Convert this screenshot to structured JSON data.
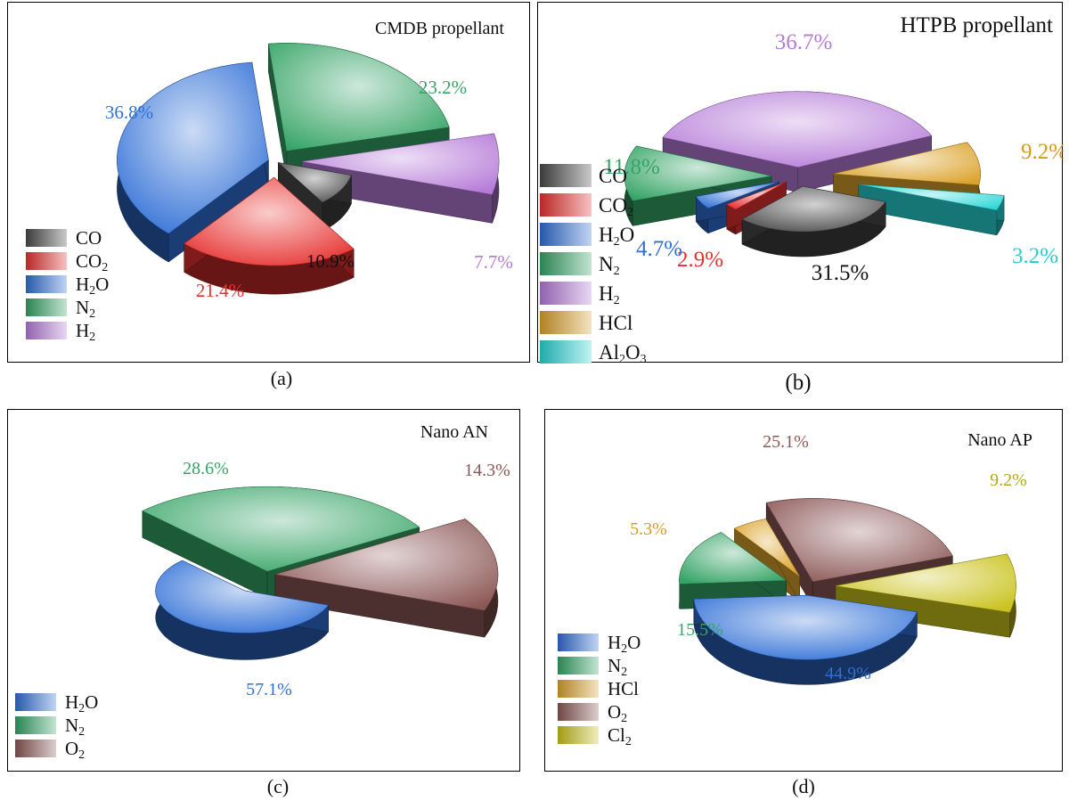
{
  "colors": {
    "CO": "#4a4a4a",
    "CO2": "#e6312f",
    "H2O": "#2f6fd6",
    "N2": "#35a466",
    "H2": "#b57ad8",
    "HCl": "#dca22a",
    "Al2O3": "#28d6d6",
    "O2": "#8b5755",
    "Cl2": "#c9c21c"
  },
  "chart_data": [
    {
      "type": "pie",
      "caption": "(a)",
      "title": "CMDB propellant",
      "slices": [
        {
          "key": "CO",
          "label_main": "CO",
          "label_sub": "",
          "label_tail": "",
          "value": 10.9,
          "label": "10.9%"
        },
        {
          "key": "CO2",
          "label_main": "CO",
          "label_sub": "2",
          "label_tail": "",
          "value": 21.4,
          "label": "21.4%"
        },
        {
          "key": "H2O",
          "label_main": "H",
          "label_sub": "2",
          "label_tail": "O",
          "value": 36.8,
          "label": "36.8%"
        },
        {
          "key": "N2",
          "label_main": "N",
          "label_sub": "2",
          "label_tail": "",
          "value": 23.2,
          "label": "23.2%"
        },
        {
          "key": "H2",
          "label_main": "H",
          "label_sub": "2",
          "label_tail": "",
          "value": 7.7,
          "label": "7.7%"
        }
      ],
      "legend_position": "bottom-left"
    },
    {
      "type": "pie",
      "caption": "(b)",
      "title": "HTPB propellant",
      "slices": [
        {
          "key": "CO",
          "label_main": "CO",
          "label_sub": "",
          "label_tail": "",
          "value": 31.5,
          "label": "31.5%"
        },
        {
          "key": "CO2",
          "label_main": "CO",
          "label_sub": "2",
          "label_tail": "",
          "value": 2.9,
          "label": "2.9%"
        },
        {
          "key": "H2O",
          "label_main": "H",
          "label_sub": "2",
          "label_tail": "O",
          "value": 4.7,
          "label": "4.7%"
        },
        {
          "key": "N2",
          "label_main": "N",
          "label_sub": "2",
          "label_tail": "",
          "value": 11.8,
          "label": "11.8%"
        },
        {
          "key": "H2",
          "label_main": "H",
          "label_sub": "2",
          "label_tail": "",
          "value": 36.7,
          "label": "36.7%"
        },
        {
          "key": "HCl",
          "label_main": "HCl",
          "label_sub": "",
          "label_tail": "",
          "value": 9.2,
          "label": "9.2%"
        },
        {
          "key": "Al2O3",
          "label_main": "Al",
          "label_sub": "2",
          "label_tail": "O<sub>3</sub>",
          "value": 3.2,
          "label": "3.2%"
        }
      ],
      "legend_position": "left"
    },
    {
      "type": "pie",
      "caption": "(c)",
      "title": "Nano AN",
      "slices": [
        {
          "key": "H2O",
          "label_main": "H",
          "label_sub": "2",
          "label_tail": "O",
          "value": 57.1,
          "label": "57.1%"
        },
        {
          "key": "N2",
          "label_main": "N",
          "label_sub": "2",
          "label_tail": "",
          "value": 28.6,
          "label": "28.6%"
        },
        {
          "key": "O2",
          "label_main": "O",
          "label_sub": "2",
          "label_tail": "",
          "value": 14.3,
          "label": "14.3%"
        }
      ],
      "legend_position": "bottom-left"
    },
    {
      "type": "pie",
      "caption": "(d)",
      "title": "Nano AP",
      "slices": [
        {
          "key": "H2O",
          "label_main": "H",
          "label_sub": "2",
          "label_tail": "O",
          "value": 44.9,
          "label": "44.9%"
        },
        {
          "key": "N2",
          "label_main": "N",
          "label_sub": "2",
          "label_tail": "",
          "value": 15.5,
          "label": "15.5%"
        },
        {
          "key": "HCl",
          "label_main": "HCl",
          "label_sub": "",
          "label_tail": "",
          "value": 5.3,
          "label": "5.3%"
        },
        {
          "key": "O2",
          "label_main": "O",
          "label_sub": "2",
          "label_tail": "",
          "value": 25.1,
          "label": "25.1%"
        },
        {
          "key": "Cl2",
          "label_main": "Cl",
          "label_sub": "2",
          "label_tail": "",
          "value": 9.2,
          "label": "9.2%"
        }
      ],
      "legend_position": "bottom-left"
    }
  ]
}
